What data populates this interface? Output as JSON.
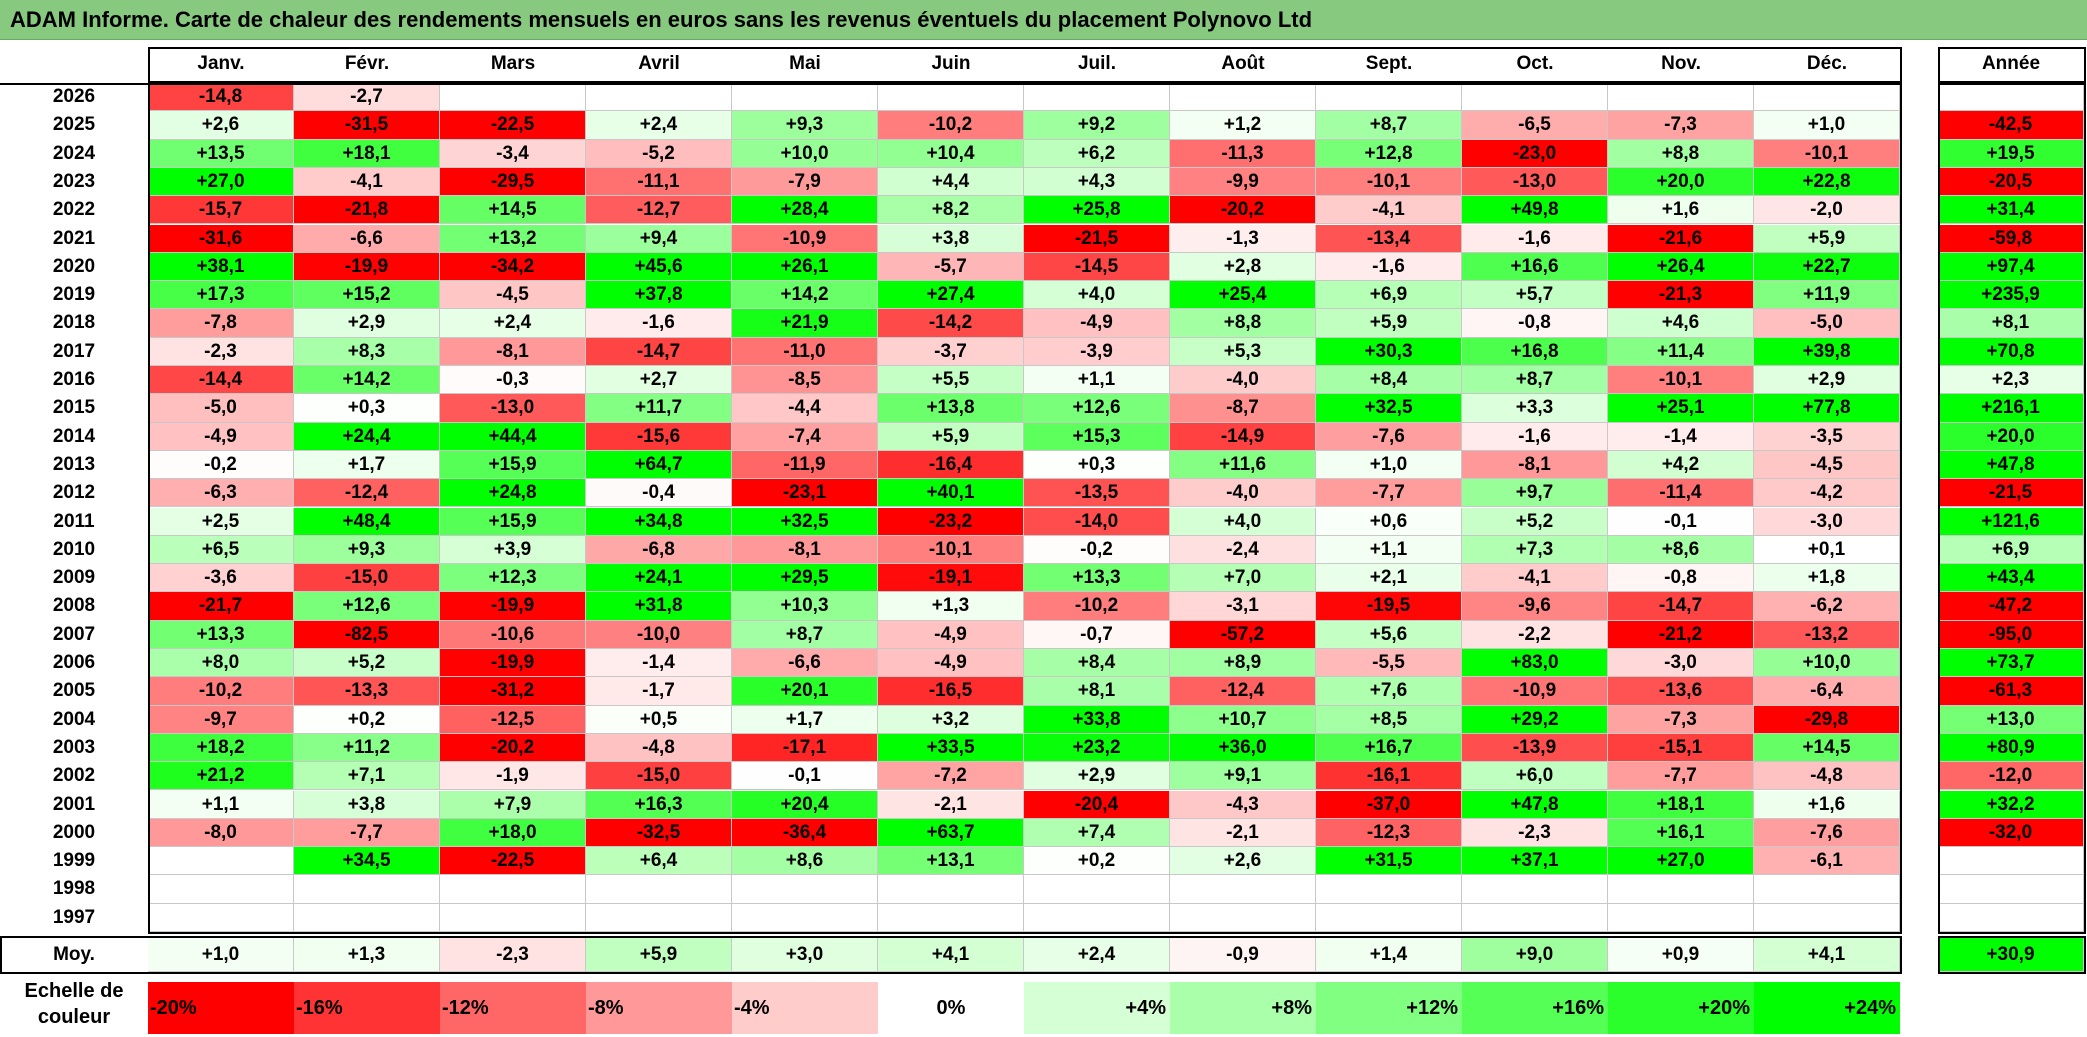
{
  "title": "ADAM Informe. Carte de chaleur des rendements mensuels en euros sans les revenus éventuels du placement Polynovo Ltd",
  "chart_data": {
    "type": "heatmap",
    "months": [
      "Janv.",
      "Févr.",
      "Mars",
      "Avril",
      "Mai",
      "Juin",
      "Juil.",
      "Août",
      "Sept.",
      "Oct.",
      "Nov.",
      "Déc."
    ],
    "annual_label": "Année",
    "rows": [
      {
        "year": "2026",
        "values": [
          -14.8,
          -2.7,
          null,
          null,
          null,
          null,
          null,
          null,
          null,
          null,
          null,
          null
        ],
        "annual": null
      },
      {
        "year": "2025",
        "values": [
          2.6,
          -31.5,
          -22.5,
          2.4,
          9.3,
          -10.2,
          9.2,
          1.2,
          8.7,
          -6.5,
          -7.3,
          1.0
        ],
        "annual": -42.5
      },
      {
        "year": "2024",
        "values": [
          13.5,
          18.1,
          -3.4,
          -5.2,
          10.0,
          10.4,
          6.2,
          -11.3,
          12.8,
          -23.0,
          8.8,
          -10.1
        ],
        "annual": 19.5
      },
      {
        "year": "2023",
        "values": [
          27.0,
          -4.1,
          -29.5,
          -11.1,
          -7.9,
          4.4,
          4.3,
          -9.9,
          -10.1,
          -13.0,
          20.0,
          22.8
        ],
        "annual": -20.5
      },
      {
        "year": "2022",
        "values": [
          -15.7,
          -21.8,
          14.5,
          -12.7,
          28.4,
          8.2,
          25.8,
          -20.2,
          -4.1,
          49.8,
          1.6,
          -2.0
        ],
        "annual": 31.4
      },
      {
        "year": "2021",
        "values": [
          -31.6,
          -6.6,
          13.2,
          9.4,
          -10.9,
          3.8,
          -21.5,
          -1.3,
          -13.4,
          -1.6,
          -21.6,
          5.9
        ],
        "annual": -59.8
      },
      {
        "year": "2020",
        "values": [
          38.1,
          -19.9,
          -34.2,
          45.6,
          26.1,
          -5.7,
          -14.5,
          2.8,
          -1.6,
          16.6,
          26.4,
          22.7
        ],
        "annual": 97.4
      },
      {
        "year": "2019",
        "values": [
          17.3,
          15.2,
          -4.5,
          37.8,
          14.2,
          27.4,
          4.0,
          25.4,
          6.9,
          5.7,
          -21.3,
          11.9
        ],
        "annual": 235.9
      },
      {
        "year": "2018",
        "values": [
          -7.8,
          2.9,
          2.4,
          -1.6,
          21.9,
          -14.2,
          -4.9,
          8.8,
          5.9,
          -0.8,
          4.6,
          -5.0
        ],
        "annual": 8.1
      },
      {
        "year": "2017",
        "values": [
          -2.3,
          8.3,
          -8.1,
          -14.7,
          -11.0,
          -3.7,
          -3.9,
          5.3,
          30.3,
          16.8,
          11.4,
          39.8
        ],
        "annual": 70.8
      },
      {
        "year": "2016",
        "values": [
          -14.4,
          14.2,
          -0.3,
          2.7,
          -8.5,
          5.5,
          1.1,
          -4.0,
          8.4,
          8.7,
          -10.1,
          2.9
        ],
        "annual": 2.3
      },
      {
        "year": "2015",
        "values": [
          -5.0,
          0.3,
          -13.0,
          11.7,
          -4.4,
          13.8,
          12.6,
          -8.7,
          32.5,
          3.3,
          25.1,
          77.8
        ],
        "annual": 216.1
      },
      {
        "year": "2014",
        "values": [
          -4.9,
          24.4,
          44.4,
          -15.6,
          -7.4,
          5.9,
          15.3,
          -14.9,
          -7.6,
          -1.6,
          -1.4,
          -3.5
        ],
        "annual": 20.0
      },
      {
        "year": "2013",
        "values": [
          -0.2,
          1.7,
          15.9,
          64.7,
          -11.9,
          -16.4,
          0.3,
          11.6,
          1.0,
          -8.1,
          4.2,
          -4.5
        ],
        "annual": 47.8
      },
      {
        "year": "2012",
        "values": [
          -6.3,
          -12.4,
          24.8,
          -0.4,
          -23.1,
          40.1,
          -13.5,
          -4.0,
          -7.7,
          9.7,
          -11.4,
          -4.2
        ],
        "annual": -21.5
      },
      {
        "year": "2011",
        "values": [
          2.5,
          48.4,
          15.9,
          34.8,
          32.5,
          -23.2,
          -14.0,
          4.0,
          0.6,
          5.2,
          -0.1,
          -3.0
        ],
        "annual": 121.6
      },
      {
        "year": "2010",
        "values": [
          6.5,
          9.3,
          3.9,
          -6.8,
          -8.1,
          -10.1,
          -0.2,
          -2.4,
          1.1,
          7.3,
          8.6,
          0.1
        ],
        "annual": 6.9
      },
      {
        "year": "2009",
        "values": [
          -3.6,
          -15.0,
          12.3,
          24.1,
          29.5,
          -19.1,
          13.3,
          7.0,
          2.1,
          -4.1,
          -0.8,
          1.8
        ],
        "annual": 43.4
      },
      {
        "year": "2008",
        "values": [
          -21.7,
          12.6,
          -19.9,
          31.8,
          10.3,
          1.3,
          -10.2,
          -3.1,
          -19.5,
          -9.6,
          -14.7,
          -6.2
        ],
        "annual": -47.2
      },
      {
        "year": "2007",
        "values": [
          13.3,
          -82.5,
          -10.6,
          -10.0,
          8.7,
          -4.9,
          -0.7,
          -57.2,
          5.6,
          -2.2,
          -21.2,
          -13.2
        ],
        "annual": -95.0
      },
      {
        "year": "2006",
        "values": [
          8.0,
          5.2,
          -19.9,
          -1.4,
          -6.6,
          -4.9,
          8.4,
          8.9,
          -5.5,
          83.0,
          -3.0,
          10.0
        ],
        "annual": 73.7
      },
      {
        "year": "2005",
        "values": [
          -10.2,
          -13.3,
          -31.2,
          -1.7,
          20.1,
          -16.5,
          8.1,
          -12.4,
          7.6,
          -10.9,
          -13.6,
          -6.4
        ],
        "annual": -61.3
      },
      {
        "year": "2004",
        "values": [
          -9.7,
          0.2,
          -12.5,
          0.5,
          1.7,
          3.2,
          33.8,
          10.7,
          8.5,
          29.2,
          -7.3,
          -29.8
        ],
        "annual": 13.0
      },
      {
        "year": "2003",
        "values": [
          18.2,
          11.2,
          -20.2,
          -4.8,
          -17.1,
          33.5,
          23.2,
          36.0,
          16.7,
          -13.9,
          -15.1,
          14.5
        ],
        "annual": 80.9
      },
      {
        "year": "2002",
        "values": [
          21.2,
          7.1,
          -1.9,
          -15.0,
          -0.1,
          -7.2,
          2.9,
          9.1,
          -16.1,
          6.0,
          -7.7,
          -4.8
        ],
        "annual": -12.0
      },
      {
        "year": "2001",
        "values": [
          1.1,
          3.8,
          7.9,
          16.3,
          20.4,
          -2.1,
          -20.4,
          -4.3,
          -37.0,
          47.8,
          18.1,
          1.6
        ],
        "annual": 32.2
      },
      {
        "year": "2000",
        "values": [
          -8.0,
          -7.7,
          18.0,
          -32.5,
          -36.4,
          63.7,
          7.4,
          -2.1,
          -12.3,
          -2.3,
          16.1,
          -7.6
        ],
        "annual": -32.0
      },
      {
        "year": "1999",
        "values": [
          null,
          34.5,
          -22.5,
          6.4,
          8.6,
          13.1,
          0.2,
          2.6,
          31.5,
          37.1,
          27.0,
          -6.1
        ],
        "annual": null
      },
      {
        "year": "1998",
        "values": [
          null,
          null,
          null,
          null,
          null,
          null,
          null,
          null,
          null,
          null,
          null,
          null
        ],
        "annual": null
      },
      {
        "year": "1997",
        "values": [
          null,
          null,
          null,
          null,
          null,
          null,
          null,
          null,
          null,
          null,
          null,
          null
        ],
        "annual": null
      }
    ],
    "average": {
      "label": "Moy.",
      "values": [
        1.0,
        1.3,
        -2.3,
        5.9,
        3.0,
        4.1,
        2.4,
        -0.9,
        1.4,
        9.0,
        0.9,
        4.1
      ],
      "annual": 30.9
    },
    "scale": {
      "label": "Echelle de couleur",
      "steps": [
        -20,
        -16,
        -12,
        -8,
        -4,
        0,
        4,
        8,
        12,
        16,
        20,
        24
      ]
    }
  }
}
